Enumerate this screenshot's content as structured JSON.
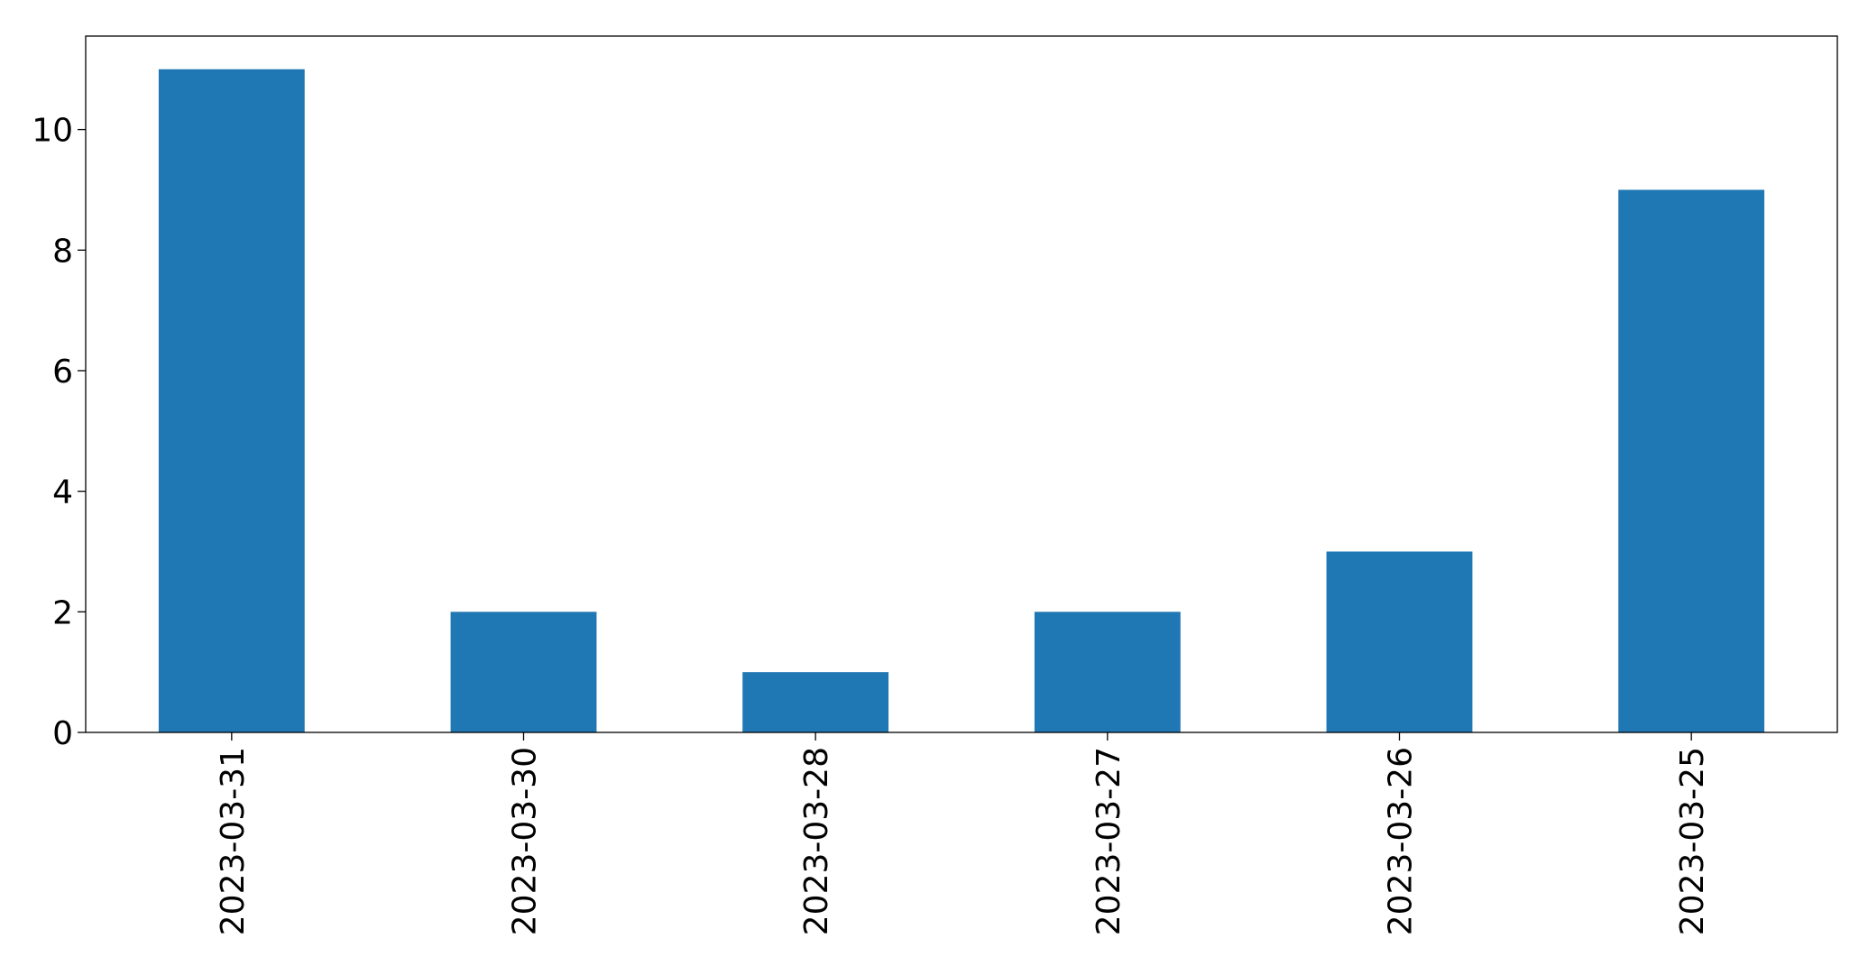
{
  "chart_data": {
    "type": "bar",
    "title": "",
    "xlabel": "",
    "ylabel": "",
    "categories": [
      "2023-03-31",
      "2023-03-30",
      "2023-03-28",
      "2023-03-27",
      "2023-03-26",
      "2023-03-25"
    ],
    "values": [
      11,
      2,
      1,
      2,
      3,
      9
    ],
    "ylim": [
      0,
      11.55
    ],
    "yticks": [
      0,
      2,
      4,
      6,
      8,
      10
    ],
    "grid": false,
    "legend": "none",
    "bar_color": "#1f77b4"
  }
}
